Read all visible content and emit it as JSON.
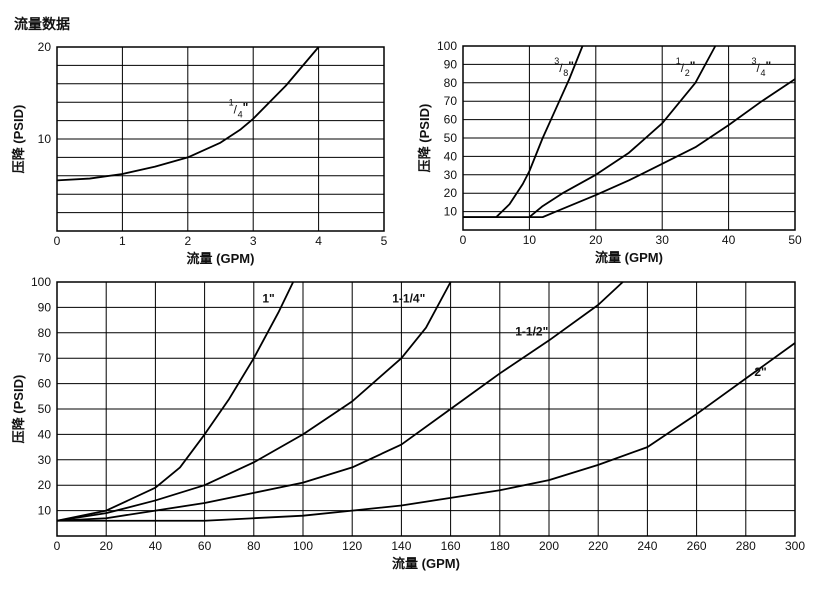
{
  "page_title": "流量数据",
  "chart_data": [
    {
      "type": "line",
      "xlabel": "流量 (GPM)",
      "ylabel": "压降 (PSID)",
      "xlim": [
        0,
        5
      ],
      "ylim": [
        0,
        20
      ],
      "x_ticks": [
        "0",
        "1",
        "2",
        "3",
        "4",
        "5"
      ],
      "y_ticks": [
        "10",
        "20"
      ],
      "grid": true,
      "series": [
        {
          "name": "1/4\"",
          "label": {
            "num": "1",
            "den": "4",
            "mark": "\"",
            "x": 2.7,
            "y": 13.2
          },
          "points": [
            [
              0,
              5.5
            ],
            [
              0.5,
              5.7
            ],
            [
              1,
              6.2
            ],
            [
              1.5,
              7.0
            ],
            [
              2,
              8.0
            ],
            [
              2.5,
              9.6
            ],
            [
              2.8,
              11.0
            ],
            [
              3,
              12.2
            ],
            [
              3.5,
              15.8
            ],
            [
              4,
              20
            ]
          ]
        }
      ]
    },
    {
      "type": "line",
      "xlabel": "流量 (GPM)",
      "ylabel": "压降 (PSID)",
      "xlim": [
        0,
        50
      ],
      "ylim": [
        0,
        100
      ],
      "x_ticks": [
        "0",
        "10",
        "20",
        "30",
        "40",
        "50"
      ],
      "y_ticks": [
        "10",
        "20",
        "30",
        "40",
        "50",
        "60",
        "70",
        "80",
        "90",
        "100"
      ],
      "grid": true,
      "series": [
        {
          "name": "3/8\"",
          "label": {
            "num": "3",
            "den": "8",
            "mark": "\"",
            "x": 14.5,
            "y": 88
          },
          "points": [
            [
              0,
              7
            ],
            [
              5,
              7
            ],
            [
              7,
              14
            ],
            [
              9,
              25
            ],
            [
              10,
              32
            ],
            [
              12,
              50
            ],
            [
              14,
              66
            ],
            [
              16,
              82
            ],
            [
              18,
              100
            ]
          ]
        },
        {
          "name": "1/2\"",
          "label": {
            "num": "1",
            "den": "2",
            "mark": "\"",
            "x": 32.8,
            "y": 88
          },
          "points": [
            [
              0,
              7
            ],
            [
              10,
              7
            ],
            [
              12,
              13
            ],
            [
              15,
              20
            ],
            [
              20,
              30
            ],
            [
              25,
              42
            ],
            [
              30,
              58
            ],
            [
              35,
              80
            ],
            [
              38,
              100
            ]
          ]
        },
        {
          "name": "3/4\"",
          "label": {
            "num": "3",
            "den": "4",
            "mark": "\"",
            "x": 44.2,
            "y": 88
          },
          "points": [
            [
              10,
              7
            ],
            [
              12,
              7
            ],
            [
              14,
              10
            ],
            [
              20,
              19
            ],
            [
              25,
              27
            ],
            [
              30,
              36
            ],
            [
              35,
              45
            ],
            [
              40,
              57
            ],
            [
              45,
              70
            ],
            [
              50,
              82
            ]
          ]
        }
      ]
    },
    {
      "type": "line",
      "xlabel": "流量 (GPM)",
      "ylabel": "压降 (PSID)",
      "xlim": [
        0,
        300
      ],
      "ylim": [
        0,
        100
      ],
      "x_ticks": [
        "0",
        "20",
        "40",
        "60",
        "80",
        "100",
        "120",
        "140",
        "160",
        "180",
        "200",
        "220",
        "240",
        "260",
        "280",
        "300"
      ],
      "y_ticks": [
        "10",
        "20",
        "30",
        "40",
        "50",
        "60",
        "70",
        "80",
        "90",
        "100"
      ],
      "grid": true,
      "series": [
        {
          "name": "1\"",
          "label": {
            "text": "1\"",
            "x": 86,
            "y": 92
          },
          "points": [
            [
              0,
              6
            ],
            [
              20,
              10
            ],
            [
              40,
              19
            ],
            [
              50,
              27
            ],
            [
              60,
              40
            ],
            [
              70,
              54
            ],
            [
              80,
              70
            ],
            [
              90,
              88
            ],
            [
              96,
              100
            ]
          ]
        },
        {
          "name": "1-1/4\"",
          "label": {
            "text": "1-1/4\"",
            "x": 143,
            "y": 92
          },
          "points": [
            [
              0,
              6
            ],
            [
              20,
              9
            ],
            [
              40,
              14
            ],
            [
              60,
              20
            ],
            [
              80,
              29
            ],
            [
              100,
              40
            ],
            [
              120,
              53
            ],
            [
              140,
              70
            ],
            [
              150,
              82
            ],
            [
              160,
              100
            ]
          ]
        },
        {
          "name": "1-1/2\"",
          "label": {
            "text": "1-1/2\"",
            "x": 193,
            "y": 79
          },
          "points": [
            [
              0,
              6
            ],
            [
              20,
              7
            ],
            [
              40,
              10
            ],
            [
              60,
              13
            ],
            [
              80,
              17
            ],
            [
              100,
              21
            ],
            [
              120,
              27
            ],
            [
              140,
              36
            ],
            [
              160,
              50
            ],
            [
              180,
              64
            ],
            [
              200,
              77
            ],
            [
              220,
              91
            ],
            [
              230,
              100
            ]
          ]
        },
        {
          "name": "2\"",
          "label": {
            "text": "2\"",
            "x": 286,
            "y": 63
          },
          "points": [
            [
              0,
              6
            ],
            [
              20,
              6
            ],
            [
              40,
              6
            ],
            [
              60,
              6
            ],
            [
              80,
              7
            ],
            [
              100,
              8
            ],
            [
              120,
              10
            ],
            [
              140,
              12
            ],
            [
              160,
              15
            ],
            [
              180,
              18
            ],
            [
              200,
              22
            ],
            [
              220,
              28
            ],
            [
              240,
              35
            ],
            [
              260,
              48
            ],
            [
              280,
              62
            ],
            [
              300,
              76
            ]
          ]
        }
      ]
    }
  ]
}
